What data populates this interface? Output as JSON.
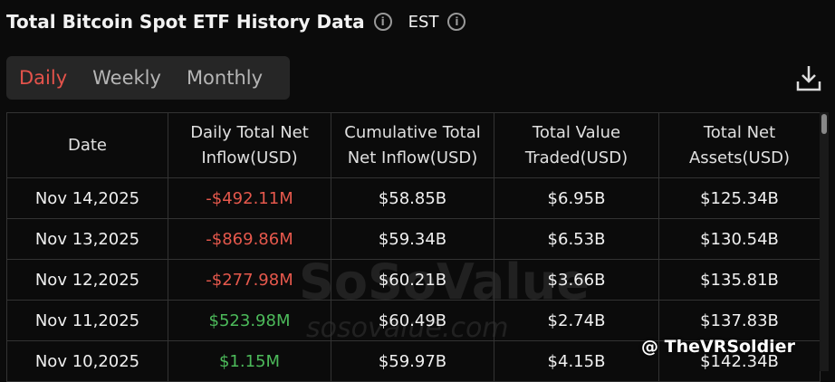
{
  "header": {
    "title": "Total Bitcoin Spot ETF History Data",
    "timezone": "EST"
  },
  "tabs": [
    "Daily",
    "Weekly",
    "Monthly"
  ],
  "table": {
    "columns": [
      "Date",
      "Daily Total Net Inflow(USD)",
      "Cumulative Total Net Inflow(USD)",
      "Total Value Traded(USD)",
      "Total Net Assets(USD)"
    ],
    "rows": [
      [
        "Nov 14,2025",
        "-$492.11M",
        "$58.85B",
        "$6.95B",
        "$125.34B"
      ],
      [
        "Nov 13,2025",
        "-$869.86M",
        "$59.34B",
        "$6.53B",
        "$130.54B"
      ],
      [
        "Nov 12,2025",
        "-$277.98M",
        "$60.21B",
        "$3.66B",
        "$135.81B"
      ],
      [
        "Nov 11,2025",
        "$523.98M",
        "$60.49B",
        "$2.74B",
        "$137.83B"
      ],
      [
        "Nov 10,2025",
        "$1.15M",
        "$59.97B",
        "$4.15B",
        "$142.34B"
      ]
    ]
  },
  "watermark": {
    "brand": "SoSoValue",
    "url": "sosovalue.com"
  },
  "credit": "@ TheVRSoldier"
}
